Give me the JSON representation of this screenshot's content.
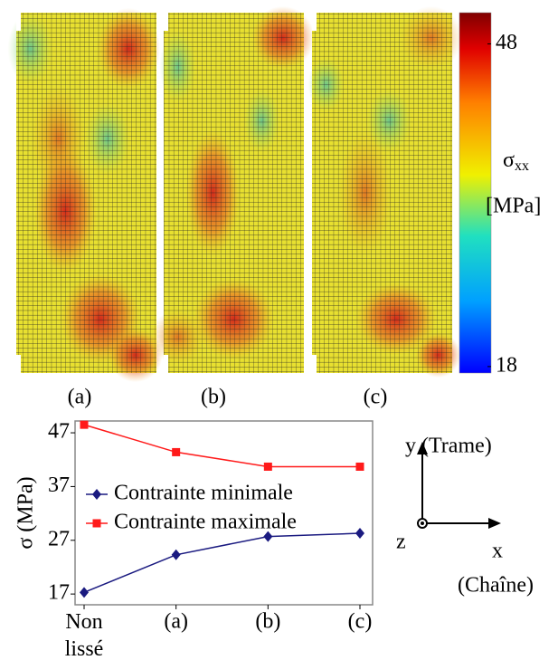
{
  "chart_data": [
    {
      "type": "heatmap",
      "panels": [
        "(a)",
        "(b)",
        "(c)"
      ],
      "colorbar_symbol": "σ",
      "colorbar_subscript": "xx",
      "colorbar_unit": "[MPa]",
      "clim": [
        17.4,
        50.9
      ],
      "cticks": [
        18,
        48
      ]
    },
    {
      "type": "line",
      "ylabel": "σ (MPa)",
      "categories": [
        "Non lissé",
        "(a)",
        "(b)",
        "(c)"
      ],
      "series": [
        {
          "name": "Contrainte minimale",
          "color": "#1a1a80",
          "marker": "diamond",
          "values": [
            17.3,
            24.3,
            27.7,
            28.3
          ]
        },
        {
          "name": "Contrainte maximale",
          "color": "#ff1a1a",
          "marker": "square",
          "values": [
            48.5,
            43.4,
            40.7,
            40.7
          ]
        }
      ],
      "ylim": [
        15,
        49.2
      ],
      "yticks": [
        17,
        27,
        37,
        47
      ]
    }
  ],
  "axes_diagram": {
    "y_label": "y (Trame)",
    "z_label": "z",
    "x_label": "x",
    "x_name": "(Chaîne)"
  }
}
